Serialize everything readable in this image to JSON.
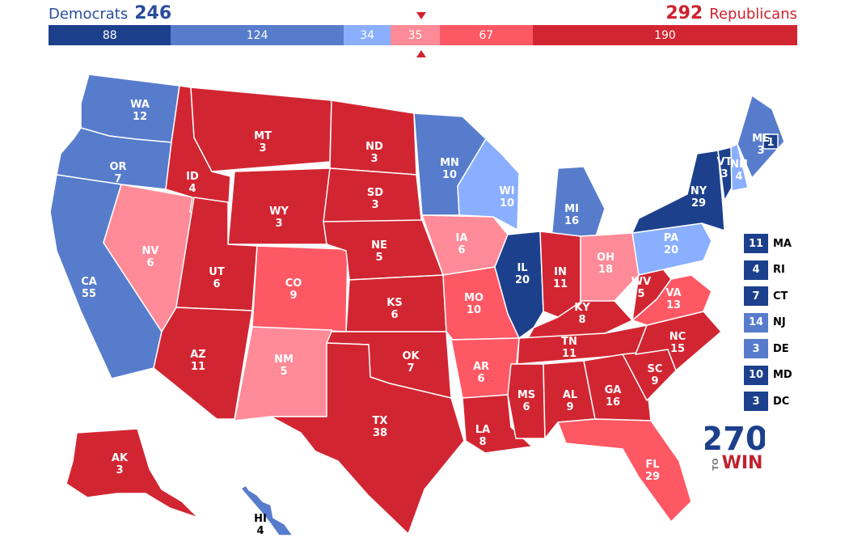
{
  "header": {
    "dem_label": "Democrats",
    "dem_total": "246",
    "rep_total": "292",
    "rep_label": "Republicans"
  },
  "colors": {
    "safe_dem": "#1c408c",
    "likely_dem": "#577ccc",
    "lean_dem": "#8aafff",
    "lean_rep": "#ff8b98",
    "likely_rep": "#ff5865",
    "safe_rep": "#d22532"
  },
  "tally_bar": [
    {
      "value": "88",
      "votes": 88,
      "rating": "safe_dem"
    },
    {
      "value": "124",
      "votes": 124,
      "rating": "likely_dem"
    },
    {
      "value": "34",
      "votes": 34,
      "rating": "lean_dem"
    },
    {
      "value": "35",
      "votes": 35,
      "rating": "lean_rep"
    },
    {
      "value": "67",
      "votes": 67,
      "rating": "likely_rep"
    },
    {
      "value": "190",
      "votes": 190,
      "rating": "safe_rep"
    }
  ],
  "states": [
    {
      "abbr": "WA",
      "ev": "12",
      "rating": "likely_dem"
    },
    {
      "abbr": "OR",
      "ev": "7",
      "rating": "likely_dem"
    },
    {
      "abbr": "CA",
      "ev": "55",
      "rating": "likely_dem"
    },
    {
      "abbr": "NV",
      "ev": "6",
      "rating": "lean_rep"
    },
    {
      "abbr": "ID",
      "ev": "4",
      "rating": "safe_rep"
    },
    {
      "abbr": "MT",
      "ev": "3",
      "rating": "safe_rep"
    },
    {
      "abbr": "WY",
      "ev": "3",
      "rating": "safe_rep"
    },
    {
      "abbr": "UT",
      "ev": "6",
      "rating": "safe_rep"
    },
    {
      "abbr": "AZ",
      "ev": "11",
      "rating": "safe_rep"
    },
    {
      "abbr": "CO",
      "ev": "9",
      "rating": "likely_rep"
    },
    {
      "abbr": "NM",
      "ev": "5",
      "rating": "lean_rep"
    },
    {
      "abbr": "ND",
      "ev": "3",
      "rating": "safe_rep"
    },
    {
      "abbr": "SD",
      "ev": "3",
      "rating": "safe_rep"
    },
    {
      "abbr": "NE",
      "ev": "5",
      "rating": "safe_rep"
    },
    {
      "abbr": "KS",
      "ev": "6",
      "rating": "safe_rep"
    },
    {
      "abbr": "OK",
      "ev": "7",
      "rating": "safe_rep"
    },
    {
      "abbr": "TX",
      "ev": "38",
      "rating": "safe_rep"
    },
    {
      "abbr": "MN",
      "ev": "10",
      "rating": "likely_dem"
    },
    {
      "abbr": "IA",
      "ev": "6",
      "rating": "lean_rep"
    },
    {
      "abbr": "MO",
      "ev": "10",
      "rating": "likely_rep"
    },
    {
      "abbr": "AR",
      "ev": "6",
      "rating": "likely_rep"
    },
    {
      "abbr": "LA",
      "ev": "8",
      "rating": "safe_rep"
    },
    {
      "abbr": "WI",
      "ev": "10",
      "rating": "lean_dem"
    },
    {
      "abbr": "IL",
      "ev": "20",
      "rating": "safe_dem"
    },
    {
      "abbr": "MI",
      "ev": "16",
      "rating": "likely_dem"
    },
    {
      "abbr": "IN",
      "ev": "11",
      "rating": "safe_rep"
    },
    {
      "abbr": "OH",
      "ev": "18",
      "rating": "lean_rep"
    },
    {
      "abbr": "KY",
      "ev": "8",
      "rating": "safe_rep"
    },
    {
      "abbr": "TN",
      "ev": "11",
      "rating": "safe_rep"
    },
    {
      "abbr": "MS",
      "ev": "6",
      "rating": "safe_rep"
    },
    {
      "abbr": "AL",
      "ev": "9",
      "rating": "safe_rep"
    },
    {
      "abbr": "GA",
      "ev": "16",
      "rating": "safe_rep"
    },
    {
      "abbr": "FL",
      "ev": "29",
      "rating": "likely_rep"
    },
    {
      "abbr": "SC",
      "ev": "9",
      "rating": "safe_rep"
    },
    {
      "abbr": "NC",
      "ev": "15",
      "rating": "safe_rep"
    },
    {
      "abbr": "VA",
      "ev": "13",
      "rating": "likely_rep"
    },
    {
      "abbr": "WV",
      "ev": "5",
      "rating": "safe_rep"
    },
    {
      "abbr": "PA",
      "ev": "20",
      "rating": "lean_dem"
    },
    {
      "abbr": "NY",
      "ev": "29",
      "rating": "safe_dem"
    },
    {
      "abbr": "VT",
      "ev": "3",
      "rating": "safe_dem"
    },
    {
      "abbr": "NH",
      "ev": "4",
      "rating": "lean_dem"
    },
    {
      "abbr": "ME",
      "ev": "3",
      "rating": "likely_dem"
    },
    {
      "abbr": "ME-district",
      "ev": "1",
      "rating": "safe_dem"
    },
    {
      "abbr": "AK",
      "ev": "3",
      "rating": "safe_rep"
    },
    {
      "abbr": "HI",
      "ev": "4",
      "rating": "likely_dem"
    }
  ],
  "small_states": [
    {
      "abbr": "MA",
      "ev": "11",
      "rating": "safe_dem"
    },
    {
      "abbr": "RI",
      "ev": "4",
      "rating": "safe_dem"
    },
    {
      "abbr": "CT",
      "ev": "7",
      "rating": "safe_dem"
    },
    {
      "abbr": "NJ",
      "ev": "14",
      "rating": "likely_dem"
    },
    {
      "abbr": "DE",
      "ev": "3",
      "rating": "likely_dem"
    },
    {
      "abbr": "MD",
      "ev": "10",
      "rating": "safe_dem"
    },
    {
      "abbr": "DC",
      "ev": "3",
      "rating": "safe_dem"
    }
  ],
  "logo": {
    "top": "270",
    "bottom_left": "TO",
    "bottom_right": "WIN"
  }
}
